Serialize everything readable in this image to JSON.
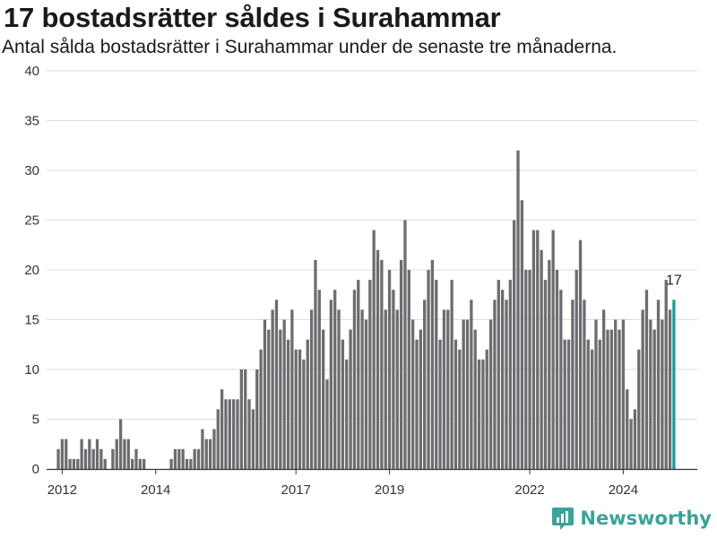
{
  "title": "17 bostadsrätter såldes i Surahammar",
  "subtitle": "Antal sålda bostadsrätter i Surahammar under de senaste tre månaderna.",
  "brand": {
    "name": "Newsworthy",
    "icon": "newsworthy-logo-icon",
    "color": "#3aa39a"
  },
  "colors": {
    "bar": "#6d6c71",
    "highlight": "#1d9c95",
    "grid": "#dddddd"
  },
  "chart_data": {
    "type": "bar",
    "x_start": "2011-09",
    "x_end": "2025-08",
    "x_ticks": [
      {
        "label": "2012",
        "date": "2012-01"
      },
      {
        "label": "2014",
        "date": "2014-01"
      },
      {
        "label": "2017",
        "date": "2017-01"
      },
      {
        "label": "2019",
        "date": "2019-01"
      },
      {
        "label": "2022",
        "date": "2022-01"
      },
      {
        "label": "2024",
        "date": "2024-01"
      }
    ],
    "y_ticks": [
      0,
      5,
      10,
      15,
      20,
      25,
      30,
      35,
      40
    ],
    "ylim": [
      0,
      40
    ],
    "grid": true,
    "start_month": "2011-12",
    "values": [
      2,
      3,
      3,
      1,
      1,
      1,
      3,
      2,
      3,
      2,
      3,
      2,
      1,
      0,
      2,
      3,
      5,
      3,
      3,
      1,
      2,
      1,
      1,
      0,
      0,
      0,
      0,
      0,
      0,
      1,
      2,
      2,
      2,
      1,
      1,
      2,
      2,
      4,
      3,
      3,
      4,
      6,
      8,
      7,
      7,
      7,
      7,
      10,
      10,
      7,
      6,
      10,
      12,
      15,
      14,
      16,
      17,
      14,
      15,
      13,
      16,
      12,
      12,
      11,
      13,
      16,
      21,
      18,
      14,
      9,
      17,
      18,
      16,
      13,
      11,
      14,
      18,
      19,
      16,
      15,
      19,
      24,
      22,
      21,
      16,
      20,
      18,
      16,
      21,
      25,
      20,
      15,
      13,
      14,
      17,
      20,
      21,
      19,
      13,
      16,
      16,
      19,
      13,
      12,
      15,
      15,
      17,
      14,
      11,
      11,
      12,
      15,
      17,
      19,
      18,
      17,
      19,
      25,
      32,
      27,
      20,
      20,
      24,
      24,
      22,
      19,
      21,
      24,
      20,
      18,
      13,
      13,
      17,
      20,
      23,
      17,
      13,
      12,
      15,
      13,
      16,
      14,
      14,
      15,
      14,
      15,
      8,
      5,
      6,
      12,
      16,
      18,
      15,
      14,
      17,
      15,
      19,
      16,
      17
    ],
    "highlight_last": true,
    "last_label": "17"
  }
}
